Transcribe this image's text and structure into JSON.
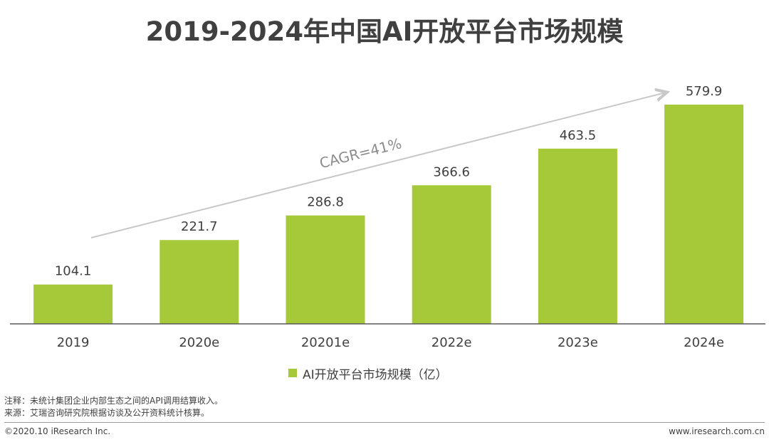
{
  "colors": {
    "bar": "#a6c93a",
    "text": "#404040",
    "arrow": "#c8c8c8",
    "cagr_text": "#8c8c8c",
    "axis": "#595959"
  },
  "chart_data": {
    "type": "bar",
    "title": "2019-2024年中国AI开放平台市场规模",
    "categories": [
      "2019",
      "2020e",
      "20201e",
      "2022e",
      "2023e",
      "2024e"
    ],
    "series": [
      {
        "name": "AI开放平台市场规模（亿）",
        "values": [
          104.1,
          221.7,
          286.8,
          366.6,
          463.5,
          579.9
        ]
      }
    ],
    "data_labels": [
      "104.1",
      "221.7",
      "286.8",
      "366.6",
      "463.5",
      "579.9"
    ],
    "annotation": "CAGR=41%",
    "ylim": [
      0,
      620
    ],
    "grid": false,
    "legend_position": "bottom-center"
  },
  "legend": {
    "label": "AI开放平台市场规模（亿）"
  },
  "notes": {
    "note": "注释：未统计集团企业内部生态之间的API调用结算收入。",
    "source": "来源：艾瑞咨询研究院根据访谈及公开资料统计核算。"
  },
  "footer": {
    "copyright": "©2020.10 iResearch Inc.",
    "website": "www.iresearch.com.cn"
  }
}
